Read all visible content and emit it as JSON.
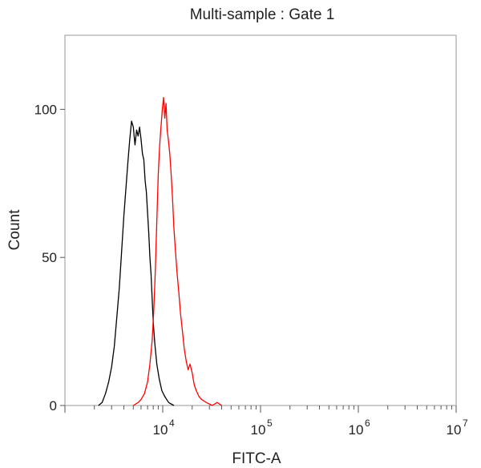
{
  "chart_data": {
    "type": "line",
    "title": "Multi-sample : Gate 1",
    "xlabel": "FITC-A",
    "ylabel": "Count",
    "x_scale": "log",
    "xlim": [
      1000,
      10000000
    ],
    "ylim": [
      0,
      125
    ],
    "x_ticks": [
      {
        "value": 10000,
        "base": "10",
        "exp": "4"
      },
      {
        "value": 100000,
        "base": "10",
        "exp": "5"
      },
      {
        "value": 1000000,
        "base": "10",
        "exp": "6"
      },
      {
        "value": 10000000,
        "base": "10",
        "exp": "7"
      }
    ],
    "y_ticks": [
      {
        "value": 0,
        "label": "0"
      },
      {
        "value": 50,
        "label": "50"
      },
      {
        "value": 100,
        "label": "100"
      }
    ],
    "grid": false,
    "legend": "none",
    "series": [
      {
        "color": "#000000",
        "points": [
          [
            2200,
            0
          ],
          [
            2400,
            1
          ],
          [
            2600,
            4
          ],
          [
            2800,
            8
          ],
          [
            3000,
            13
          ],
          [
            3200,
            20
          ],
          [
            3400,
            30
          ],
          [
            3600,
            40
          ],
          [
            3800,
            52
          ],
          [
            4000,
            64
          ],
          [
            4200,
            73
          ],
          [
            4400,
            82
          ],
          [
            4600,
            90
          ],
          [
            4800,
            96
          ],
          [
            5000,
            94
          ],
          [
            5200,
            88
          ],
          [
            5400,
            93
          ],
          [
            5600,
            91
          ],
          [
            5800,
            94
          ],
          [
            6000,
            90
          ],
          [
            6200,
            85
          ],
          [
            6400,
            83
          ],
          [
            6600,
            76
          ],
          [
            6800,
            72
          ],
          [
            7000,
            65
          ],
          [
            7200,
            58
          ],
          [
            7400,
            50
          ],
          [
            7600,
            44
          ],
          [
            7800,
            36
          ],
          [
            8000,
            28
          ],
          [
            8300,
            21
          ],
          [
            8700,
            14
          ],
          [
            9200,
            9
          ],
          [
            9800,
            5
          ],
          [
            10500,
            3
          ],
          [
            11500,
            1
          ],
          [
            13000,
            0
          ]
        ]
      },
      {
        "color": "#ff0000",
        "points": [
          [
            5000,
            0
          ],
          [
            5600,
            1
          ],
          [
            6000,
            2
          ],
          [
            6500,
            4
          ],
          [
            7000,
            8
          ],
          [
            7400,
            14
          ],
          [
            7800,
            22
          ],
          [
            8100,
            32
          ],
          [
            8400,
            46
          ],
          [
            8700,
            62
          ],
          [
            9000,
            78
          ],
          [
            9300,
            88
          ],
          [
            9600,
            94
          ],
          [
            9900,
            100
          ],
          [
            10200,
            104
          ],
          [
            10500,
            97
          ],
          [
            10800,
            102
          ],
          [
            11100,
            93
          ],
          [
            11400,
            90
          ],
          [
            11800,
            85
          ],
          [
            12200,
            78
          ],
          [
            12600,
            70
          ],
          [
            13000,
            60
          ],
          [
            13500,
            52
          ],
          [
            14000,
            45
          ],
          [
            14600,
            38
          ],
          [
            15200,
            31
          ],
          [
            15900,
            25
          ],
          [
            16600,
            19
          ],
          [
            17400,
            15
          ],
          [
            18200,
            12
          ],
          [
            19000,
            14
          ],
          [
            20000,
            11
          ],
          [
            21000,
            7
          ],
          [
            22000,
            5
          ],
          [
            23500,
            3
          ],
          [
            25000,
            2
          ],
          [
            28000,
            1
          ],
          [
            32000,
            0
          ],
          [
            36000,
            1
          ],
          [
            40000,
            0
          ]
        ]
      }
    ]
  }
}
